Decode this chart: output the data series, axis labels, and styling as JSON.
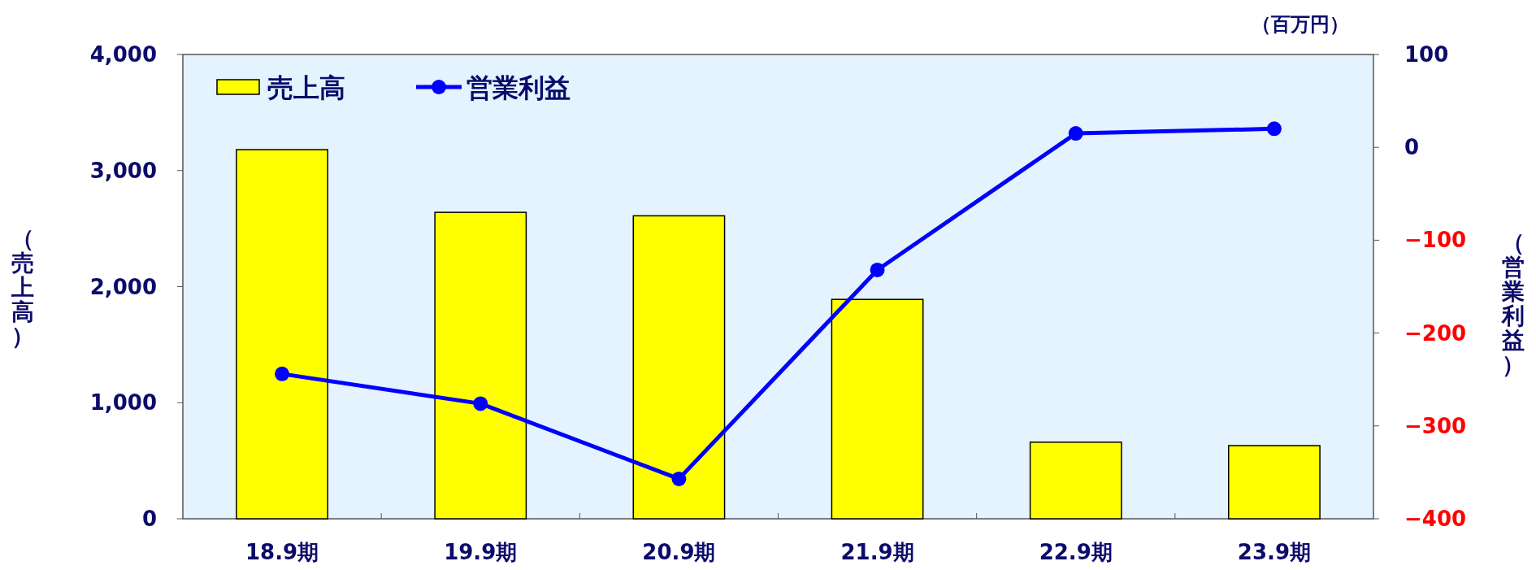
{
  "chart_data": {
    "type": "bar",
    "categories": [
      "18.9期",
      "19.9期",
      "20.9期",
      "21.9期",
      "22.9期",
      "23.9期"
    ],
    "ylabel": "（売上高）",
    "y2label": "（営業利益）",
    "annotations": [
      "（百万円）"
    ],
    "ylim": [
      0,
      4000
    ],
    "yticks": [
      {
        "value": 0,
        "label": "0"
      },
      {
        "value": 1000,
        "label": "1,000"
      },
      {
        "value": 2000,
        "label": "2,000"
      },
      {
        "value": 3000,
        "label": "3,000"
      },
      {
        "value": 4000,
        "label": "4,000"
      }
    ],
    "y2lim": [
      -400,
      100
    ],
    "y2ticks": [
      {
        "value": -400,
        "label": "−400"
      },
      {
        "value": -300,
        "label": "−300"
      },
      {
        "value": -200,
        "label": "−200"
      },
      {
        "value": -100,
        "label": "−100"
      },
      0,
      100
    ],
    "legend": "top left",
    "marker": "circle",
    "series": [
      {
        "name": "売上高",
        "color": "#ffff00",
        "values": [
          3180,
          2640,
          2610,
          1890,
          660,
          630
        ]
      },
      {
        "name": "営業利益",
        "type": "line",
        "axis": "y2",
        "color": "#0000ff",
        "values": [
          -244,
          -276,
          -357,
          -132,
          15,
          20
        ]
      }
    ]
  }
}
